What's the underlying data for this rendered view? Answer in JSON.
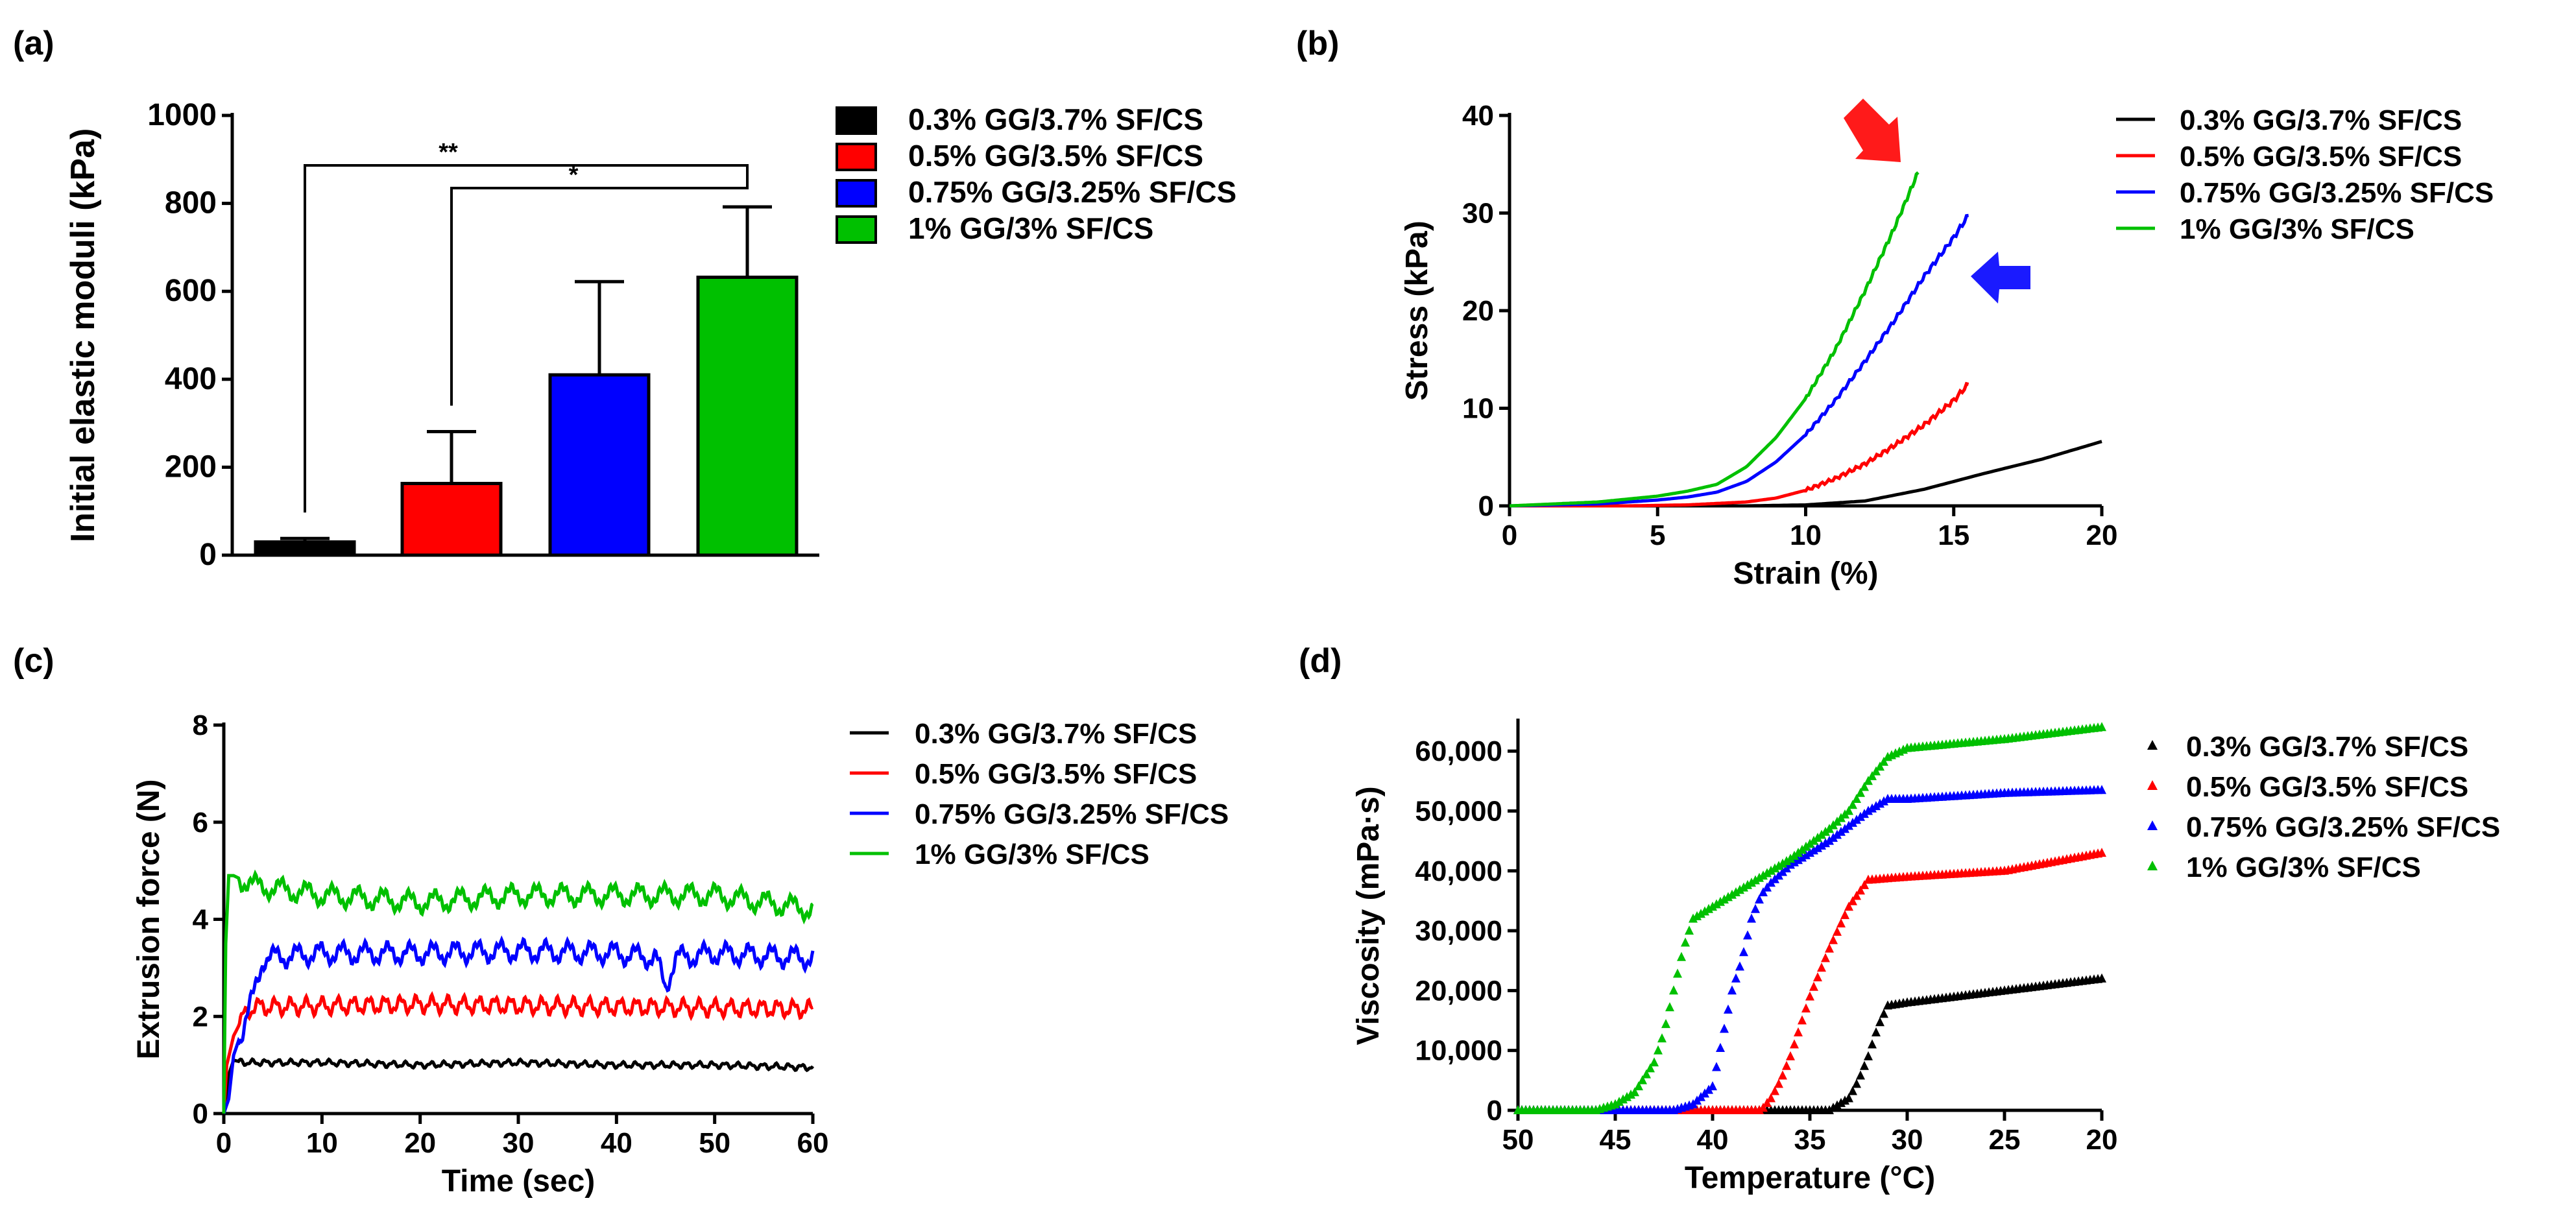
{
  "colors": {
    "s1": "#000000",
    "s2": "#ff0000",
    "s3": "#0000ff",
    "s4": "#00c000"
  },
  "chart_data": [
    {
      "panel": "(a)",
      "type": "bar",
      "ylabel": "Initial elastic moduli (kPa)",
      "ylim": [
        0,
        1000
      ],
      "yticks": [
        0,
        200,
        400,
        600,
        800,
        1000
      ],
      "yticklabels": [
        "0",
        "200",
        "400",
        "600",
        "800",
        "1000"
      ],
      "categories": [
        "0.3% GG/3.7% SF/CS",
        "0.5% GG/3.5% SF/CS",
        "0.75% GG/3.25% SF/CS",
        "1% GG/3% SF/CS"
      ],
      "values": [
        30,
        163,
        410,
        632
      ],
      "errors": [
        8,
        118,
        212,
        160
      ],
      "significance": [
        {
          "from": 0,
          "to": 3,
          "label": "**"
        },
        {
          "from": 1,
          "to": 3,
          "label": "*"
        }
      ],
      "legend": [
        "0.3% GG/3.7% SF/CS",
        "0.5% GG/3.5% SF/CS",
        "0.75% GG/3.25% SF/CS",
        "1% GG/3% SF/CS"
      ]
    },
    {
      "panel": "(b)",
      "type": "line",
      "xlabel": "Strain (%)",
      "ylabel": "Stress (kPa)",
      "xlim": [
        0,
        20
      ],
      "ylim": [
        0,
        40
      ],
      "xticks": [
        0,
        5,
        10,
        15,
        20
      ],
      "xticklabels": [
        "0",
        "5",
        "10",
        "15",
        "20"
      ],
      "yticks": [
        0,
        10,
        20,
        30,
        40
      ],
      "yticklabels": [
        "0",
        "10",
        "20",
        "30",
        "40"
      ],
      "series": [
        {
          "name": "0.3% GG/3.7% SF/CS",
          "x": [
            0,
            4,
            8,
            10,
            12,
            14,
            16,
            18,
            20
          ],
          "y": [
            0,
            0,
            0,
            0.1,
            0.5,
            1.7,
            3.3,
            4.8,
            6.6
          ]
        },
        {
          "name": "0.5% GG/3.5% SF/CS",
          "x": [
            0,
            4,
            6,
            8,
            9,
            10,
            11,
            12,
            13,
            14,
            15,
            15.5
          ],
          "y": [
            0,
            0,
            0.1,
            0.4,
            0.8,
            1.6,
            2.8,
            4.3,
            6.2,
            8.3,
            10.8,
            12.5
          ]
        },
        {
          "name": "0.75% GG/3.25% SF/CS",
          "x": [
            0,
            3,
            5,
            6,
            7,
            8,
            9,
            10,
            11,
            12,
            13,
            14,
            15,
            15.5
          ],
          "y": [
            0,
            0.2,
            0.6,
            0.9,
            1.4,
            2.5,
            4.5,
            7.3,
            10.8,
            14.8,
            19,
            23.5,
            27.5,
            29.8
          ]
        },
        {
          "name": "1% GG/3% SF/CS",
          "x": [
            0,
            3,
            5,
            6,
            7,
            8,
            9,
            10,
            11,
            12,
            13,
            13.8
          ],
          "y": [
            0,
            0.4,
            1.0,
            1.5,
            2.2,
            4.0,
            7.0,
            11.0,
            16.0,
            22.0,
            28.5,
            34.2
          ]
        }
      ],
      "legend": [
        "0.3% GG/3.7% SF/CS",
        "0.5% GG/3.5% SF/CS",
        "0.75% GG/3.25% SF/CS",
        "1% GG/3% SF/CS"
      ],
      "annotations": [
        {
          "kind": "arrow",
          "color": "red",
          "points_to": [
            13.8,
            34.2
          ]
        },
        {
          "kind": "arrow",
          "color": "blue",
          "points_to": [
            15.5,
            23
          ]
        }
      ]
    },
    {
      "panel": "(c)",
      "type": "line",
      "xlabel": "Time (sec)",
      "ylabel": "Extrusion force (N)",
      "xlim": [
        0,
        60
      ],
      "ylim": [
        0,
        8
      ],
      "xticks": [
        0,
        10,
        20,
        30,
        40,
        50,
        60
      ],
      "xticklabels": [
        "0",
        "10",
        "20",
        "30",
        "40",
        "50",
        "60"
      ],
      "yticks": [
        0,
        2,
        4,
        6,
        8
      ],
      "yticklabels": [
        "0",
        "2",
        "4",
        "6",
        "8"
      ],
      "series": [
        {
          "name": "0.3% GG/3.7% SF/CS",
          "x": [
            0,
            0.5,
            1,
            2,
            10,
            20,
            30,
            40,
            50,
            60
          ],
          "y": [
            0,
            0.8,
            1.1,
            1.05,
            1.05,
            1.0,
            1.05,
            1.0,
            1.0,
            0.95
          ],
          "noise": 0.07,
          "period": 1.3
        },
        {
          "name": "0.5% GG/3.5% SF/CS",
          "x": [
            0,
            0.3,
            1,
            2,
            3,
            5,
            20,
            40,
            60
          ],
          "y": [
            0,
            1.0,
            1.6,
            2.0,
            2.2,
            2.2,
            2.25,
            2.2,
            2.15
          ],
          "noise": 0.2,
          "period": 1.6
        },
        {
          "name": "0.75% GG/3.25% SF/CS",
          "x": [
            0,
            0.5,
            1,
            2,
            3,
            4,
            10,
            20,
            30,
            40,
            44,
            45,
            46,
            50,
            60
          ],
          "y": [
            0,
            0.3,
            1.2,
            1.8,
            2.4,
            3.2,
            3.3,
            3.3,
            3.35,
            3.3,
            3.2,
            2.6,
            3.2,
            3.3,
            3.2
          ],
          "noise": 0.25,
          "period": 2.3
        },
        {
          "name": "1% GG/3% SF/CS",
          "x": [
            0,
            0.2,
            0.5,
            1,
            3,
            10,
            20,
            30,
            40,
            50,
            60
          ],
          "y": [
            0,
            3.5,
            4.9,
            4.9,
            4.7,
            4.5,
            4.35,
            4.5,
            4.5,
            4.5,
            4.2
          ],
          "noise": 0.25,
          "period": 2.6
        }
      ],
      "legend": [
        "0.3% GG/3.7% SF/CS",
        "0.5% GG/3.5% SF/CS",
        "0.75% GG/3.25% SF/CS",
        "1% GG/3% SF/CS"
      ]
    },
    {
      "panel": "(d)",
      "type": "scatter",
      "marker": "triangle",
      "xlabel": "Temperature (°C)",
      "ylabel": "Viscosity (mPa·s)",
      "xlim": [
        50,
        20
      ],
      "ylim": [
        0,
        65000
      ],
      "xticks": [
        50,
        45,
        40,
        35,
        30,
        25,
        20
      ],
      "xticklabels": [
        "50",
        "45",
        "40",
        "35",
        "30",
        "25",
        "20"
      ],
      "yticks": [
        0,
        10000,
        20000,
        30000,
        40000,
        50000,
        60000
      ],
      "yticklabels": [
        "0",
        "10,000",
        "20,000",
        "30,000",
        "40,000",
        "50,000",
        "60,000"
      ],
      "series": [
        {
          "name": "0.3% GG/3.7% SF/CS",
          "x": [
            50,
            34,
            33,
            32.5,
            32,
            31.5,
            31,
            30,
            25,
            20
          ],
          "y": [
            0,
            0,
            2000,
            5000,
            9000,
            14000,
            17500,
            18000,
            20000,
            22000
          ]
        },
        {
          "name": "0.5% GG/3.5% SF/CS",
          "x": [
            50,
            37.5,
            37,
            36.5,
            36,
            35.5,
            35,
            34,
            33,
            32,
            30,
            25,
            20
          ],
          "y": [
            0,
            0,
            2000,
            5000,
            9000,
            14000,
            19000,
            27000,
            34000,
            38500,
            39000,
            40000,
            43000
          ]
        },
        {
          "name": "0.75% GG/3.25% SF/CS",
          "x": [
            50,
            42,
            41,
            40,
            39.5,
            39,
            38.5,
            38,
            37.5,
            37,
            36,
            34,
            32,
            31,
            30,
            25,
            20
          ],
          "y": [
            0,
            0,
            1000,
            4000,
            12000,
            20000,
            25000,
            32000,
            36000,
            38000,
            41000,
            45000,
            50000,
            52000,
            52000,
            53000,
            53500
          ]
        },
        {
          "name": "1% GG/3% SF/CS",
          "x": [
            50,
            46,
            45,
            44,
            43,
            42.5,
            42,
            41.5,
            41,
            40,
            39,
            38,
            36,
            34,
            33,
            32,
            31,
            30,
            25,
            20
          ],
          "y": [
            0,
            0,
            1000,
            3000,
            8000,
            13000,
            20000,
            27000,
            32000,
            34000,
            36000,
            38000,
            42000,
            47000,
            50000,
            55000,
            59000,
            60500,
            62000,
            64000
          ]
        }
      ],
      "legend": [
        "0.3% GG/3.7% SF/CS",
        "0.5% GG/3.5% SF/CS",
        "0.75% GG/3.25% SF/CS",
        "1% GG/3% SF/CS"
      ]
    }
  ]
}
